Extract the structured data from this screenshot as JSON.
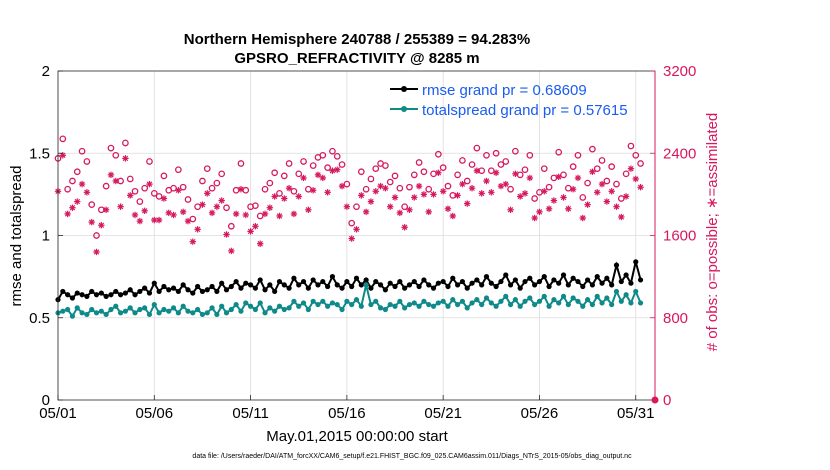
{
  "chart_data": {
    "type": "line",
    "title_line1": "Northern Hemisphere 240788 / 255389 = 94.283%",
    "title_line2": "GPSRO_REFRACTIVITY @ 8285 m",
    "xlabel": "May.01,2015 00:00:00 start",
    "ylabel_left": "rmse and totalspread",
    "ylabel_right": "# of obs: o=possible; ∗=assimilated",
    "footnote": "data file: /Users/raeder/DAI/ATM_forcXX/CAM6_setup/f.e21.FHIST_BGC.f09_025.CAM6assim.011/Diags_NTrS_2015-05/obs_diag_output.nc",
    "x_tick_labels": [
      "05/01",
      "05/06",
      "05/11",
      "05/16",
      "05/21",
      "05/26",
      "05/31"
    ],
    "x_ticks": [
      1,
      6,
      11,
      16,
      21,
      26,
      31
    ],
    "xlim": [
      1,
      32
    ],
    "ylim_left": [
      0,
      2
    ],
    "y_ticks_left": [
      "0",
      "0.5",
      "1",
      "1.5",
      "2"
    ],
    "ylim_right": [
      0,
      3200
    ],
    "y_ticks_right": [
      "0",
      "800",
      "1600",
      "2400",
      "3200"
    ],
    "x": [
      1.0,
      1.25,
      1.5,
      1.75,
      2.0,
      2.25,
      2.5,
      2.75,
      3.0,
      3.25,
      3.5,
      3.75,
      4.0,
      4.25,
      4.5,
      4.75,
      5.0,
      5.25,
      5.5,
      5.75,
      6.0,
      6.25,
      6.5,
      6.75,
      7.0,
      7.25,
      7.5,
      7.75,
      8.0,
      8.25,
      8.5,
      8.75,
      9.0,
      9.25,
      9.5,
      9.75,
      10.0,
      10.25,
      10.5,
      10.75,
      11.0,
      11.25,
      11.5,
      11.75,
      12.0,
      12.25,
      12.5,
      12.75,
      13.0,
      13.25,
      13.5,
      13.75,
      14.0,
      14.25,
      14.5,
      14.75,
      15.0,
      15.25,
      15.5,
      15.75,
      16.0,
      16.25,
      16.5,
      16.75,
      17.0,
      17.25,
      17.5,
      17.75,
      18.0,
      18.25,
      18.5,
      18.75,
      19.0,
      19.25,
      19.5,
      19.75,
      20.0,
      20.25,
      20.5,
      20.75,
      21.0,
      21.25,
      21.5,
      21.75,
      22.0,
      22.25,
      22.5,
      22.75,
      23.0,
      23.25,
      23.5,
      23.75,
      24.0,
      24.25,
      24.5,
      24.75,
      25.0,
      25.25,
      25.5,
      25.75,
      26.0,
      26.25,
      26.5,
      26.75,
      27.0,
      27.25,
      27.5,
      27.75,
      28.0,
      28.25,
      28.5,
      28.75,
      29.0,
      29.25,
      29.5,
      29.75,
      30.0,
      30.25,
      30.5,
      30.75,
      31.0,
      31.25
    ],
    "series": [
      {
        "name": "rmse",
        "legend": "rmse grand pr = 0.68609",
        "color": "#000000",
        "axis": "left",
        "values": [
          0.61,
          0.66,
          0.64,
          0.62,
          0.65,
          0.64,
          0.63,
          0.66,
          0.64,
          0.65,
          0.63,
          0.64,
          0.66,
          0.64,
          0.65,
          0.67,
          0.64,
          0.66,
          0.68,
          0.65,
          0.71,
          0.66,
          0.69,
          0.67,
          0.68,
          0.66,
          0.7,
          0.67,
          0.65,
          0.69,
          0.66,
          0.67,
          0.69,
          0.66,
          0.71,
          0.67,
          0.69,
          0.72,
          0.68,
          0.71,
          0.7,
          0.68,
          0.73,
          0.67,
          0.7,
          0.66,
          0.72,
          0.7,
          0.68,
          0.74,
          0.7,
          0.72,
          0.68,
          0.73,
          0.7,
          0.72,
          0.69,
          0.75,
          0.7,
          0.68,
          0.72,
          0.69,
          0.74,
          0.7,
          0.73,
          0.68,
          0.72,
          0.7,
          0.67,
          0.71,
          0.69,
          0.72,
          0.68,
          0.7,
          0.72,
          0.69,
          0.73,
          0.7,
          0.68,
          0.71,
          0.72,
          0.69,
          0.74,
          0.7,
          0.72,
          0.68,
          0.71,
          0.73,
          0.7,
          0.75,
          0.71,
          0.69,
          0.72,
          0.76,
          0.7,
          0.73,
          0.68,
          0.72,
          0.74,
          0.7,
          0.72,
          0.75,
          0.69,
          0.73,
          0.71,
          0.76,
          0.7,
          0.74,
          0.72,
          0.69,
          0.73,
          0.7,
          0.75,
          0.71,
          0.74,
          0.7,
          0.82,
          0.72,
          0.76,
          0.71,
          0.84,
          0.73
        ]
      },
      {
        "name": "totalspread",
        "legend": "totalspread grand pr = 0.57615",
        "color": "#0f8a8a",
        "axis": "left",
        "values": [
          0.53,
          0.54,
          0.55,
          0.51,
          0.56,
          0.53,
          0.52,
          0.55,
          0.53,
          0.54,
          0.52,
          0.55,
          0.57,
          0.53,
          0.54,
          0.56,
          0.53,
          0.55,
          0.56,
          0.52,
          0.58,
          0.53,
          0.55,
          0.54,
          0.56,
          0.53,
          0.57,
          0.54,
          0.53,
          0.55,
          0.52,
          0.53,
          0.56,
          0.52,
          0.57,
          0.53,
          0.55,
          0.58,
          0.54,
          0.59,
          0.57,
          0.55,
          0.59,
          0.53,
          0.56,
          0.54,
          0.57,
          0.55,
          0.56,
          0.6,
          0.57,
          0.59,
          0.55,
          0.6,
          0.58,
          0.6,
          0.57,
          0.59,
          0.58,
          0.55,
          0.6,
          0.58,
          0.61,
          0.57,
          0.7,
          0.58,
          0.6,
          0.56,
          0.55,
          0.58,
          0.57,
          0.6,
          0.56,
          0.58,
          0.59,
          0.57,
          0.6,
          0.58,
          0.57,
          0.59,
          0.6,
          0.57,
          0.61,
          0.58,
          0.6,
          0.56,
          0.59,
          0.61,
          0.58,
          0.62,
          0.59,
          0.57,
          0.6,
          0.63,
          0.58,
          0.61,
          0.57,
          0.6,
          0.62,
          0.58,
          0.6,
          0.63,
          0.57,
          0.61,
          0.59,
          0.63,
          0.58,
          0.62,
          0.6,
          0.57,
          0.61,
          0.58,
          0.63,
          0.59,
          0.62,
          0.58,
          0.66,
          0.6,
          0.64,
          0.59,
          0.66,
          0.59
        ]
      },
      {
        "name": "obs_possible",
        "legend": "",
        "color": "#d6185f",
        "axis": "right",
        "marker": "circle",
        "values": [
          2350,
          2540,
          2050,
          2130,
          2220,
          2420,
          2320,
          1900,
          1600,
          1850,
          2080,
          2450,
          2380,
          2130,
          2500,
          2150,
          2030,
          1930,
          2060,
          2320,
          2010,
          1980,
          2180,
          2040,
          2060,
          2240,
          2070,
          1950,
          1760,
          1880,
          2130,
          2250,
          2060,
          2110,
          2200,
          1870,
          1690,
          2040,
          2300,
          2040,
          1880,
          1890,
          1790,
          2050,
          2110,
          2210,
          2010,
          2180,
          2300,
          2030,
          2200,
          2320,
          2050,
          2280,
          2360,
          2380,
          2260,
          2420,
          2370,
          2290,
          2100,
          1720,
          1880,
          2220,
          2050,
          2150,
          2250,
          2300,
          2280,
          2120,
          2180,
          2060,
          1880,
          2070,
          2190,
          2310,
          2220,
          2050,
          2200,
          2390,
          2260,
          2080,
          1990,
          2190,
          2330,
          2130,
          2290,
          2450,
          2230,
          2380,
          2230,
          2400,
          2290,
          2320,
          2050,
          2420,
          2190,
          2240,
          2380,
          1960,
          2020,
          2250,
          2070,
          2160,
          2410,
          2190,
          2060,
          2270,
          2380,
          1970,
          2110,
          2440,
          2250,
          2330,
          2130,
          2270,
          2100,
          1960,
          2200,
          2470,
          2380,
          2300
        ]
      },
      {
        "name": "obs_assimilated",
        "legend": "",
        "color": "#d6185f",
        "axis": "right",
        "marker": "asterisk",
        "values": [
          2030,
          2380,
          1810,
          1870,
          1930,
          2100,
          2020,
          1730,
          1440,
          1700,
          1850,
          2190,
          2130,
          1880,
          2350,
          1990,
          1800,
          1740,
          1840,
          2100,
          1750,
          1750,
          1960,
          1820,
          1800,
          2040,
          1830,
          1740,
          1540,
          1660,
          1900,
          2010,
          1820,
          1880,
          1940,
          1610,
          1450,
          1810,
          2050,
          1800,
          1640,
          1690,
          1520,
          1810,
          1870,
          1980,
          1790,
          1960,
          2060,
          1810,
          1980,
          2160,
          1850,
          2040,
          2190,
          2160,
          2020,
          2230,
          2240,
          2080,
          1880,
          1570,
          1660,
          1990,
          1830,
          1930,
          2030,
          2080,
          2060,
          1880,
          1970,
          1820,
          1680,
          1850,
          1970,
          2080,
          2000,
          1830,
          2000,
          2210,
          2030,
          1860,
          1790,
          1990,
          2100,
          1910,
          2060,
          2230,
          2010,
          2130,
          2020,
          2210,
          2080,
          2100,
          1850,
          2200,
          1980,
          2010,
          2160,
          1770,
          1830,
          2030,
          1860,
          1940,
          2170,
          1970,
          1860,
          2050,
          2160,
          1770,
          1900,
          2220,
          2020,
          2100,
          1930,
          2030,
          1880,
          1780,
          1980,
          2250,
          2150,
          2070
        ]
      }
    ]
  },
  "legend_text": {
    "rmse": "rmse grand pr = 0.68609",
    "totalspread": "totalspread grand pr = 0.57615"
  }
}
